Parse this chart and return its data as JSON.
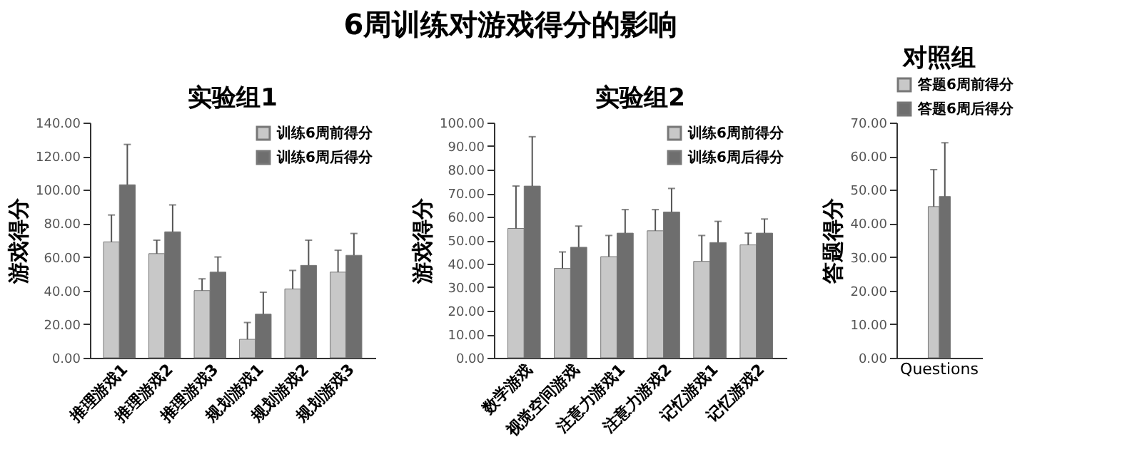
{
  "chart_data": [
    {
      "type": "bar",
      "title": "实验组1",
      "annotations": [
        "6周训练对游戏得分的影响"
      ],
      "ylabel": "游戏得分",
      "categories": [
        "推理游戏1",
        "推理游戏2",
        "推理游戏3",
        "规划游戏1",
        "规划游戏2",
        "规划游戏3"
      ],
      "series": [
        {
          "name": "训练6周前得分",
          "color": "#c8c8c8",
          "values": [
            69,
            62,
            40,
            11,
            41,
            51
          ],
          "errors": [
            [
              69,
              85
            ],
            [
              62,
              70
            ],
            [
              40,
              47
            ],
            [
              11,
              21
            ],
            [
              41,
              52
            ],
            [
              51,
              64
            ]
          ]
        },
        {
          "name": "训练6周后得分",
          "color": "#6e6e6e",
          "values": [
            103,
            75,
            51,
            26,
            55,
            61
          ],
          "errors": [
            [
              103,
              127
            ],
            [
              75,
              91
            ],
            [
              51,
              60
            ],
            [
              26,
              39
            ],
            [
              55,
              70
            ],
            [
              61,
              74
            ]
          ]
        }
      ],
      "ylim": [
        0,
        140
      ],
      "yticks": [
        {
          "value": 0,
          "label": "0.00"
        },
        {
          "value": 20,
          "label": "20.00"
        },
        {
          "value": 40,
          "label": "40.00"
        },
        {
          "value": 60,
          "label": "60.00"
        },
        {
          "value": 80,
          "label": "80.00"
        },
        {
          "value": 100,
          "label": "100.00"
        },
        {
          "value": 120,
          "label": "120.00"
        },
        {
          "value": 140,
          "label": "140.00"
        }
      ],
      "legend": "top right",
      "grid": false
    },
    {
      "type": "bar",
      "title": "实验组2",
      "ylabel": "游戏得分",
      "categories": [
        "数学游戏",
        "视觉空间游戏",
        "注意力游戏1",
        "注意力游戏2",
        "记忆游戏1",
        "记忆游戏2"
      ],
      "series": [
        {
          "name": "训练6周前得分",
          "color": "#c8c8c8",
          "values": [
            55,
            38,
            43,
            54,
            41,
            48
          ],
          "errors": [
            [
              55,
              73
            ],
            [
              38,
              45
            ],
            [
              43,
              52
            ],
            [
              54,
              63
            ],
            [
              41,
              52
            ],
            [
              48,
              53
            ]
          ]
        },
        {
          "name": "训练6周后得分",
          "color": "#6e6e6e",
          "values": [
            73,
            47,
            53,
            62,
            49,
            53
          ],
          "errors": [
            [
              73,
              94
            ],
            [
              47,
              56
            ],
            [
              53,
              63
            ],
            [
              62,
              72
            ],
            [
              49,
              58
            ],
            [
              53,
              59
            ]
          ]
        }
      ],
      "ylim": [
        0,
        100
      ],
      "yticks": [
        {
          "value": 0,
          "label": "0.00"
        },
        {
          "value": 10,
          "label": "10.00"
        },
        {
          "value": 20,
          "label": "20.00"
        },
        {
          "value": 30,
          "label": "30.00"
        },
        {
          "value": 40,
          "label": "40.00"
        },
        {
          "value": 50,
          "label": "50.00"
        },
        {
          "value": 60,
          "label": "60.00"
        },
        {
          "value": 70,
          "label": "70.00"
        },
        {
          "value": 80,
          "label": "80.00"
        },
        {
          "value": 90,
          "label": "90.00"
        },
        {
          "value": 100,
          "label": "100.00"
        }
      ],
      "legend": "top right",
      "grid": false
    },
    {
      "type": "bar",
      "title": "对照组",
      "ylabel": "答题得分",
      "categories": [
        "Questions"
      ],
      "series": [
        {
          "name": "答题6周前得分",
          "color": "#c8c8c8",
          "values": [
            45
          ],
          "errors": [
            [
              45,
              56
            ]
          ]
        },
        {
          "name": "答题6周后得分",
          "color": "#6e6e6e",
          "values": [
            48
          ],
          "errors": [
            [
              48,
              64
            ]
          ]
        }
      ],
      "ylim": [
        0,
        70
      ],
      "yticks": [
        {
          "value": 0,
          "label": "0.00"
        },
        {
          "value": 10,
          "label": "10.00"
        },
        {
          "value": 20,
          "label": "20.00"
        },
        {
          "value": 30,
          "label": "30.00"
        },
        {
          "value": 40,
          "label": "40.00"
        },
        {
          "value": 50,
          "label": "50.00"
        },
        {
          "value": 60,
          "label": "60.00"
        },
        {
          "value": 70,
          "label": "70.00"
        }
      ],
      "legend": "top",
      "grid": false
    }
  ]
}
